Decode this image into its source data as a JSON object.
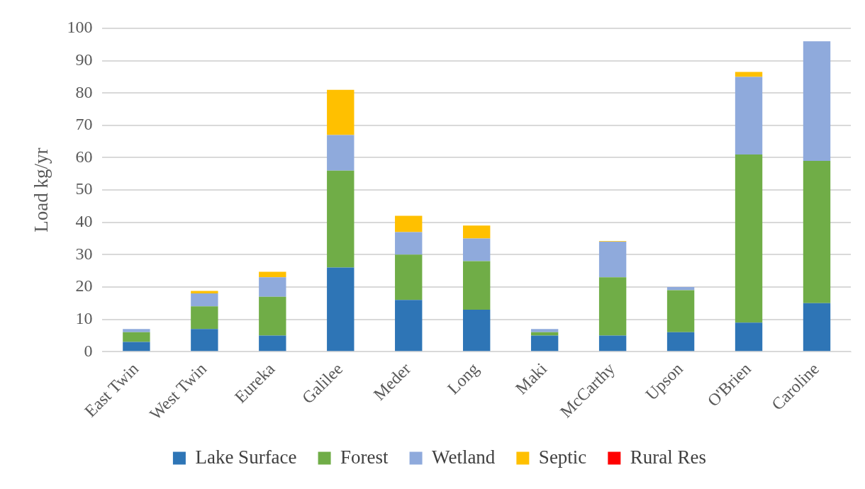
{
  "chart_data": {
    "type": "bar",
    "stacked": true,
    "ylabel": "Load kg/yr",
    "categories": [
      "East Twin",
      "West Twin",
      "Eureka",
      "Galilee",
      "Meder",
      "Long",
      "Maki",
      "McCarthy",
      "Upson",
      "O'Brien",
      "Caroline"
    ],
    "series": [
      {
        "name": "Lake Surface",
        "color": "#2e75b6",
        "values": [
          3,
          7,
          5,
          26,
          16,
          13,
          5,
          5,
          6,
          9,
          15
        ]
      },
      {
        "name": "Forest",
        "color": "#70ad47",
        "values": [
          3,
          7,
          12,
          30,
          14,
          15,
          1,
          18,
          13,
          52,
          44
        ]
      },
      {
        "name": "Wetland",
        "color": "#8faadc",
        "values": [
          1,
          4,
          6,
          11,
          7,
          7,
          1,
          11,
          1,
          24,
          37
        ]
      },
      {
        "name": "Septic",
        "color": "#ffc000",
        "values": [
          0,
          0.8,
          1.7,
          14,
          5,
          4,
          0,
          0.2,
          0,
          1.5,
          0
        ]
      },
      {
        "name": "Rural Res",
        "color": "#ff0000",
        "values": [
          0,
          0,
          0,
          0,
          0,
          0,
          0,
          0,
          0,
          0,
          0
        ]
      }
    ],
    "ylim": [
      0,
      100
    ],
    "yticks": [
      0,
      10,
      20,
      30,
      40,
      50,
      60,
      70,
      80,
      90,
      100
    ],
    "grid": "y",
    "legend": "bottom"
  }
}
